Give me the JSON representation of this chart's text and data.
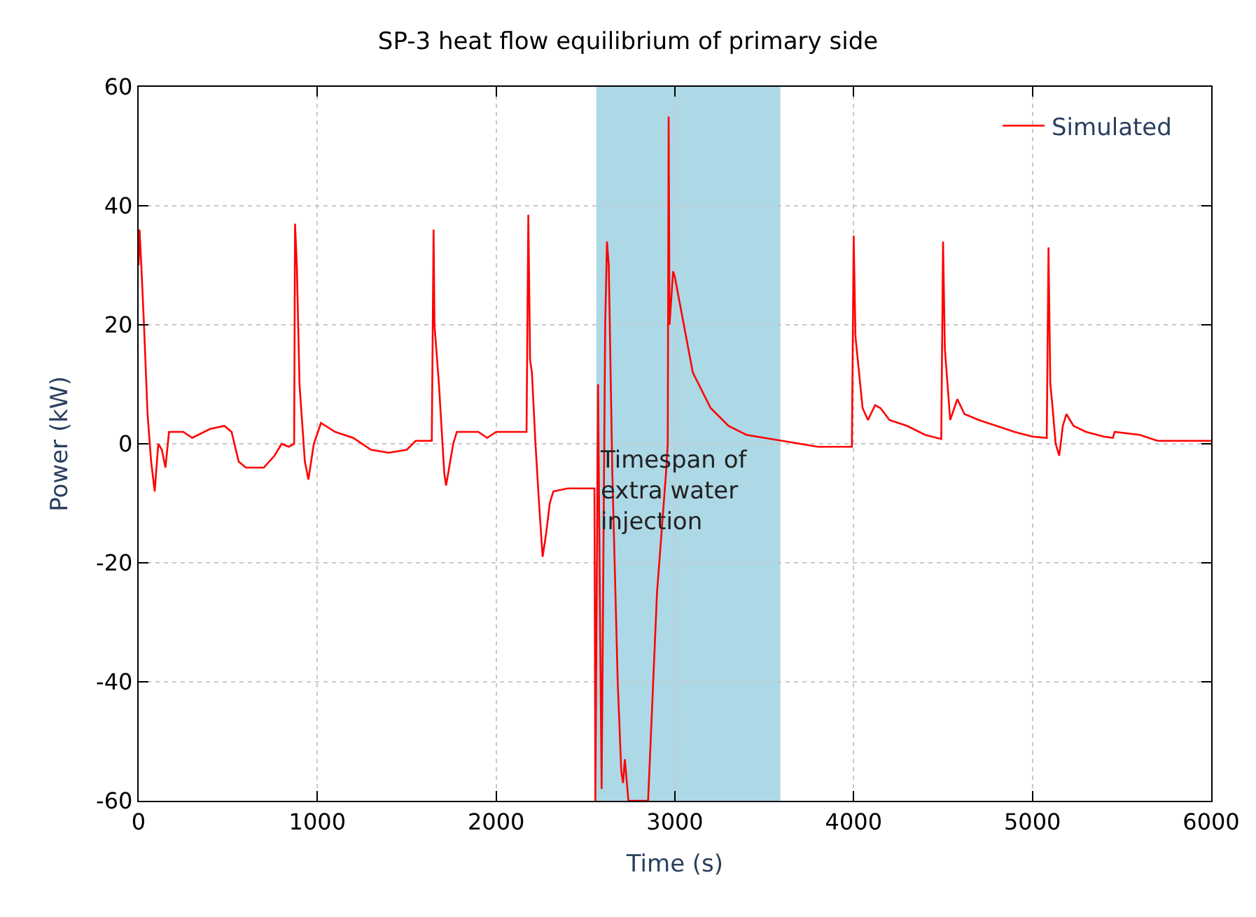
{
  "chart_data": {
    "type": "line",
    "title": "SP-3 heat flow equilibrium of primary side",
    "xlabel": "Time (s)",
    "ylabel": "Power (kW)",
    "xlim": [
      0,
      6000
    ],
    "ylim": [
      -60,
      60
    ],
    "xticks": [
      0,
      1000,
      2000,
      3000,
      4000,
      5000,
      6000
    ],
    "yticks": [
      -60,
      -40,
      -20,
      0,
      20,
      40,
      60
    ],
    "grid": true,
    "legend": "top right",
    "line_style": "solid",
    "marker": "none",
    "bands": [
      {
        "axis": "x",
        "from": 2560,
        "to": 3590,
        "label": "Timespan of\nextra water\ninjection",
        "color": "#add8e6"
      }
    ],
    "series": [
      {
        "name": "Simulated",
        "color": "#ff0000",
        "x": [
          0,
          5,
          15,
          30,
          50,
          70,
          90,
          110,
          130,
          150,
          170,
          250,
          300,
          400,
          480,
          520,
          560,
          600,
          700,
          760,
          800,
          840,
          870,
          875,
          885,
          900,
          930,
          950,
          980,
          1020,
          1100,
          1200,
          1300,
          1400,
          1500,
          1550,
          1640,
          1650,
          1655,
          1680,
          1710,
          1720,
          1760,
          1780,
          1900,
          1950,
          2000,
          2100,
          2170,
          2180,
          2190,
          2200,
          2220,
          2240,
          2260,
          2280,
          2300,
          2320,
          2400,
          2500,
          2550,
          2555,
          2570,
          2580,
          2590,
          2610,
          2620,
          2630,
          2650,
          2680,
          2700,
          2710,
          2720,
          2740,
          2850,
          2900,
          2950,
          2960,
          2965,
          2970,
          2990,
          3000,
          3050,
          3100,
          3200,
          3300,
          3400,
          3500,
          3600,
          3700,
          3800,
          3990,
          4000,
          4010,
          4050,
          4080,
          4120,
          4150,
          4200,
          4300,
          4400,
          4490,
          4500,
          4510,
          4540,
          4580,
          4620,
          4700,
          4800,
          4900,
          5000,
          5080,
          5090,
          5100,
          5110,
          5130,
          5150,
          5170,
          5190,
          5230,
          5300,
          5400,
          5450,
          5460,
          5600,
          5700,
          6000
        ],
        "values": [
          30,
          36,
          30,
          20,
          5,
          -3,
          -8,
          0,
          -1,
          -4,
          2,
          2,
          1,
          2.5,
          3,
          2,
          -3,
          -4,
          -4,
          -2,
          0,
          -0.5,
          0,
          37,
          30,
          10,
          -3,
          -6,
          0,
          3.5,
          2,
          1,
          -1,
          -1.5,
          -1,
          0.5,
          0.5,
          36,
          20,
          10,
          -5,
          -7,
          0,
          2,
          2,
          1,
          2,
          2,
          2,
          38.5,
          14,
          12,
          0,
          -10,
          -19,
          -15,
          -10,
          -8,
          -7.5,
          -7.5,
          -7.5,
          -60,
          10,
          -25,
          -58,
          20,
          34,
          30,
          -5,
          -40,
          -55,
          -57,
          -53,
          -60,
          -60,
          -25,
          -5,
          0,
          55,
          20,
          29,
          28,
          20,
          12,
          6,
          3,
          1.5,
          1,
          0.5,
          0,
          -0.5,
          -0.5,
          35,
          18,
          6,
          4,
          6.5,
          6,
          4,
          3,
          1.5,
          0.8,
          34,
          16,
          4,
          7.5,
          5,
          4,
          3,
          2,
          1.2,
          1,
          33,
          10,
          7,
          0,
          -2,
          3,
          5,
          3,
          2,
          1.2,
          1,
          2,
          1.5,
          0.5,
          0.5
        ]
      }
    ]
  }
}
